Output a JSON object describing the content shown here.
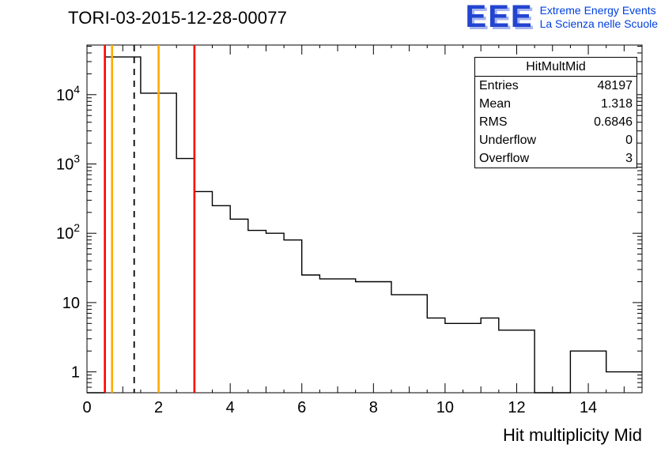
{
  "header": {
    "title": "TORI-03-2015-12-28-00077"
  },
  "logo": {
    "acronym": "EEE",
    "line1": "Extreme Energy Events",
    "line2": "La Scienza nelle Scuole",
    "color_main": "#2244d0",
    "color_shadow": "#a8b6ef",
    "color_text": "#0040dd"
  },
  "stats": {
    "title": "HitMultMid",
    "rows": [
      {
        "label": "Entries",
        "value": "48197"
      },
      {
        "label": "Mean",
        "value": "1.318"
      },
      {
        "label": "RMS",
        "value": "0.6846"
      },
      {
        "label": "Underflow",
        "value": "0"
      },
      {
        "label": "Overflow",
        "value": "3"
      }
    ]
  },
  "chart_data": {
    "type": "bar",
    "title": "TORI-03-2015-12-28-00077",
    "xlabel": "Hit multiplicity Mid",
    "ylabel": "",
    "x_range": [
      0,
      15.5
    ],
    "y_scale": "log",
    "y_range": [
      0.5,
      52000
    ],
    "grid": false,
    "legend": "none",
    "line_color": "#000000",
    "bin_start": 0,
    "bin_width": 0.5,
    "counts": [
      0,
      35000,
      35000,
      10500,
      10500,
      1200,
      400,
      250,
      160,
      110,
      100,
      80,
      25,
      22,
      22,
      20,
      20,
      13,
      13,
      6,
      5,
      5,
      6,
      4,
      4,
      0,
      0,
      2,
      2,
      1,
      1
    ],
    "x_tick_labels": [
      0,
      2,
      4,
      6,
      8,
      10,
      12,
      14
    ],
    "y_tick_labels": [
      "1",
      "10",
      "10^2",
      "10^3",
      "10^4"
    ],
    "vlines": [
      {
        "name": "cut-line-red-low",
        "x": 0.5,
        "color": "#ff0000",
        "style": "solid"
      },
      {
        "name": "band-line-yellow-low",
        "x": 0.7,
        "color": "#ffaa00",
        "style": "solid"
      },
      {
        "name": "mean-line-dashed",
        "x": 1.318,
        "color": "#000000",
        "style": "dashed"
      },
      {
        "name": "band-line-yellow-high",
        "x": 2.0,
        "color": "#ffaa00",
        "style": "solid"
      },
      {
        "name": "cut-line-red-high",
        "x": 3.0,
        "color": "#ff0000",
        "style": "solid"
      }
    ]
  }
}
